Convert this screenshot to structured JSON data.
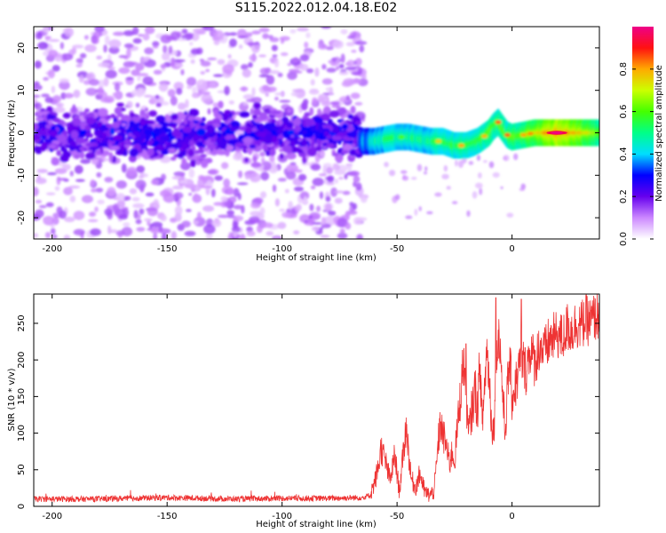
{
  "page": {
    "title": "S115.2022.012.04.18.E02"
  },
  "chart_data": [
    {
      "type": "heatmap",
      "title": "S115.2022.012.04.18.E02",
      "xlabel": "Height of straight line (km)",
      "ylabel": "Frequency (Hz)",
      "xlim": [
        -208,
        38
      ],
      "ylim": [
        -25,
        25
      ],
      "x_ticks": [
        -200,
        -150,
        -100,
        -50,
        0
      ],
      "y_ticks": [
        -20,
        -10,
        0,
        10,
        20
      ],
      "colorbar": {
        "label": "Normalized spectral amplitude",
        "range": [
          0.0,
          1.0
        ],
        "ticks": [
          0.0,
          0.2,
          0.4,
          0.6,
          0.8
        ],
        "colormap": "white-violet-blue-cyan-green-yellow-red-magenta"
      },
      "band_center_hz": {
        "x": [
          -208,
          -190,
          -170,
          -150,
          -130,
          -110,
          -90,
          -70,
          -65,
          -60,
          -55,
          -50,
          -45,
          -40,
          -35,
          -30,
          -25,
          -20,
          -15,
          -10,
          -8,
          -6,
          -4,
          -2,
          0,
          5,
          10,
          20,
          30,
          38
        ],
        "y": [
          0,
          0,
          0,
          -1,
          0,
          0,
          0,
          0,
          -2,
          -2,
          -1.5,
          -1,
          -1,
          -1.5,
          -2,
          -2,
          -3,
          -3,
          -2,
          0,
          1.5,
          2.5,
          1,
          -0.5,
          -1,
          -0.5,
          0,
          0,
          0,
          0
        ]
      },
      "peak_amplitude": {
        "x": [
          -208,
          -150,
          -100,
          -66,
          -60,
          -50,
          -40,
          -30,
          -20,
          -10,
          0,
          10,
          20,
          30,
          38
        ],
        "y": [
          0.3,
          0.3,
          0.3,
          0.3,
          0.45,
          0.5,
          0.5,
          0.55,
          0.55,
          0.6,
          0.6,
          0.75,
          0.95,
          0.8,
          0.65
        ]
      }
    },
    {
      "type": "line",
      "xlabel": "Height of straight line (km)",
      "ylabel": "SNR (10 * v/v)",
      "xlim": [
        -208,
        38
      ],
      "ylim": [
        0,
        290
      ],
      "x_ticks": [
        -200,
        -150,
        -100,
        -50,
        0
      ],
      "y_ticks": [
        0,
        50,
        100,
        150,
        200,
        250
      ],
      "color": "#ee3333",
      "series": [
        {
          "x": [
            -208,
            -180,
            -150,
            -120,
            -100,
            -80,
            -65,
            -62,
            -60,
            -58,
            -57,
            -55,
            -53,
            -51,
            -49,
            -48,
            -46,
            -44,
            -42,
            -40,
            -38,
            -36,
            -34,
            -33,
            -32,
            -31,
            -30,
            -29,
            -28,
            -27,
            -26,
            -25,
            -24,
            -23,
            -22,
            -21,
            -20,
            -19,
            -18,
            -17,
            -16,
            -15,
            -14,
            -13,
            -12,
            -11,
            -10,
            -9,
            -8,
            -7,
            -6,
            -5,
            -4,
            -3,
            -2,
            -1,
            0,
            2,
            4,
            6,
            8,
            10,
            12,
            14,
            16,
            18,
            20,
            22,
            24,
            26,
            28,
            30,
            32,
            34,
            36,
            38
          ],
          "y": [
            10,
            10,
            12,
            10,
            11,
            11,
            12,
            15,
            30,
            55,
            80,
            60,
            35,
            70,
            20,
            50,
            110,
            40,
            25,
            45,
            20,
            15,
            20,
            50,
            90,
            115,
            95,
            90,
            70,
            60,
            75,
            60,
            100,
            130,
            170,
            200,
            160,
            95,
            120,
            140,
            160,
            130,
            200,
            110,
            160,
            215,
            180,
            120,
            100,
            180,
            240,
            210,
            150,
            100,
            160,
            200,
            150,
            170,
            205,
            185,
            215,
            195,
            220,
            210,
            225,
            230,
            235,
            228,
            245,
            240,
            250,
            247,
            255,
            252,
            258,
            262
          ],
          "spikes": [
            {
              "x": -7,
              "y": 285
            },
            {
              "x": 4,
              "y": 283
            },
            {
              "x": -20,
              "y": 222
            }
          ]
        }
      ]
    }
  ]
}
